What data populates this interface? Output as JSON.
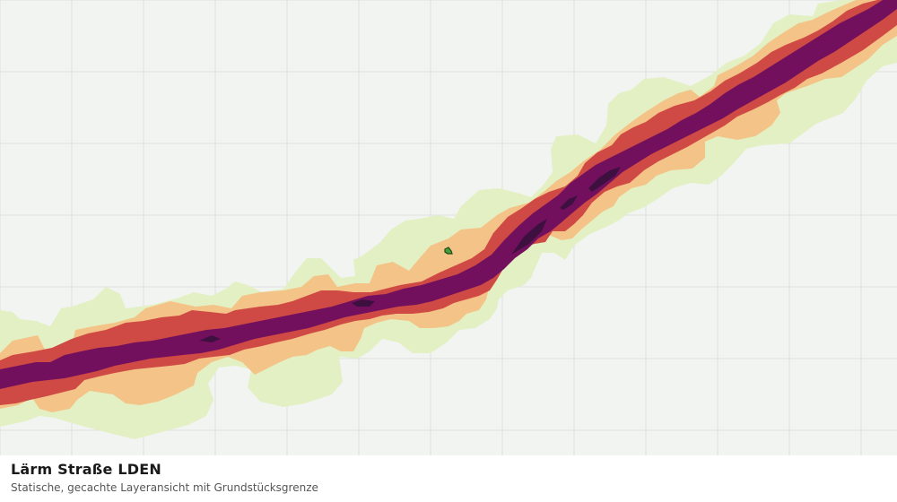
{
  "caption": {
    "title": "Lärm Straße LDEN",
    "subtitle": "Statische, gecachte Layeransicht mit Grundstücksgrenze"
  },
  "map": {
    "background_color": "#f2f4f2",
    "grid_color": "#dcdfdc",
    "noise_band_colors": {
      "lowest": "#e3f0c3",
      "low": "#f4c387",
      "medium": "#cf4a44",
      "high": "#73105e",
      "highest": "#3d1040"
    },
    "parcel_boundary": {
      "fill": "#4a9e3a",
      "stroke": "#1a4a16"
    }
  }
}
